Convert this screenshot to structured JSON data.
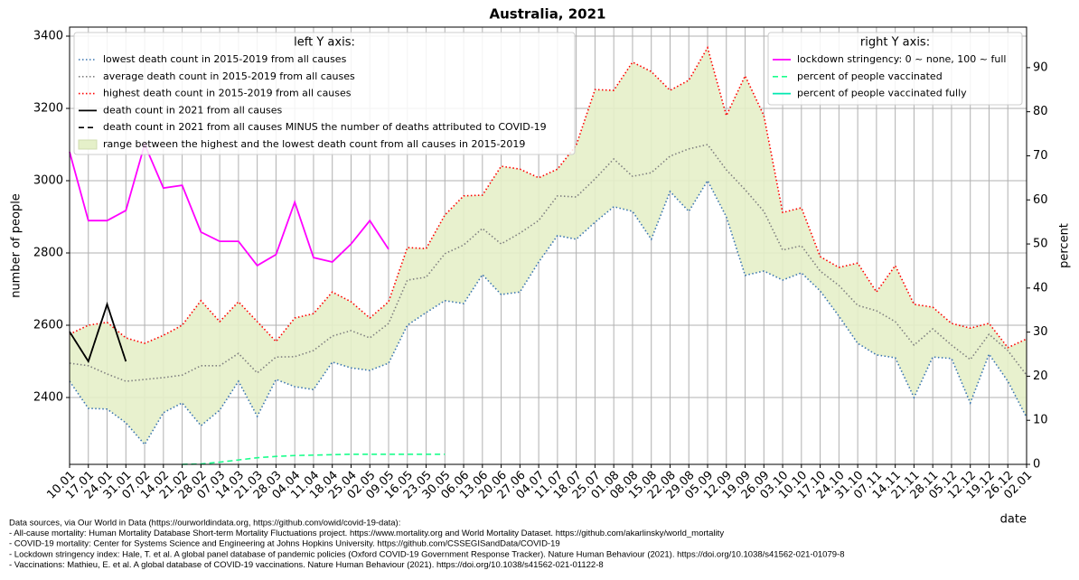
{
  "chart_data": {
    "type": "line",
    "title": "Australia, 2021",
    "ylabel": "number of people",
    "y2label": "percent",
    "xlabel": "date",
    "legend_left_title": "left Y axis:",
    "legend_right_title": "right Y axis:",
    "legend_left": "upper left",
    "legend_right": "upper right",
    "grid": true,
    "categories": [
      "10.01",
      "17.01",
      "24.01",
      "31.01",
      "07.02",
      "14.02",
      "21.02",
      "28.02",
      "07.03",
      "14.03",
      "21.03",
      "28.03",
      "04.04",
      "11.04",
      "18.04",
      "25.04",
      "02.05",
      "09.05",
      "16.05",
      "23.05",
      "30.05",
      "06.06",
      "13.06",
      "20.06",
      "27.06",
      "04.07",
      "11.07",
      "18.07",
      "25.07",
      "01.08",
      "08.08",
      "15.08",
      "22.08",
      "29.08",
      "05.09",
      "12.09",
      "19.09",
      "26.09",
      "03.10",
      "10.10",
      "17.10",
      "24.10",
      "31.10",
      "07.11",
      "14.11",
      "21.11",
      "28.11",
      "05.12",
      "12.12",
      "19.12",
      "26.12",
      "02.01"
    ],
    "ylim": [
      2215,
      3425
    ],
    "yticks": [
      2400,
      2600,
      2800,
      3000,
      3200,
      3400
    ],
    "y2lim": [
      0,
      99.2
    ],
    "y2ticks": [
      0,
      10,
      20,
      30,
      40,
      50,
      60,
      70,
      80,
      90
    ],
    "series": [
      {
        "name": "lowest death count in 2015-2019 from all causes",
        "color": "#3a75b0",
        "style": "dotted",
        "values": [
          2445,
          2370,
          2368,
          2330,
          2270,
          2358,
          2385,
          2322,
          2365,
          2445,
          2348,
          2450,
          2430,
          2422,
          2498,
          2482,
          2475,
          2495,
          2600,
          2635,
          2668,
          2660,
          2740,
          2685,
          2692,
          2775,
          2848,
          2838,
          2885,
          2928,
          2915,
          2838,
          2970,
          2915,
          3000,
          2900,
          2738,
          2750,
          2725,
          2745,
          2695,
          2625,
          2550,
          2518,
          2510,
          2400,
          2512,
          2508,
          2385,
          2520,
          2445,
          2345
        ]
      },
      {
        "name": "average death count in 2015-2019 from all causes",
        "color": "#808080",
        "style": "dotted",
        "values": [
          2495,
          2488,
          2465,
          2445,
          2450,
          2455,
          2462,
          2488,
          2488,
          2522,
          2468,
          2512,
          2513,
          2530,
          2570,
          2585,
          2565,
          2605,
          2725,
          2733,
          2798,
          2822,
          2868,
          2825,
          2855,
          2890,
          2958,
          2955,
          3005,
          3060,
          3012,
          3022,
          3068,
          3088,
          3100,
          3030,
          2975,
          2915,
          2808,
          2820,
          2750,
          2710,
          2655,
          2640,
          2610,
          2545,
          2590,
          2545,
          2505,
          2575,
          2530,
          2462
        ]
      },
      {
        "name": "highest death count in 2015-2019 from all causes",
        "color": "#ff0000",
        "style": "dotted",
        "values": [
          2575,
          2600,
          2608,
          2565,
          2550,
          2572,
          2600,
          2668,
          2610,
          2665,
          2610,
          2555,
          2620,
          2632,
          2692,
          2665,
          2620,
          2665,
          2815,
          2812,
          2905,
          2958,
          2960,
          3040,
          3032,
          3008,
          3032,
          3098,
          3252,
          3250,
          3328,
          3302,
          3250,
          3278,
          3368,
          3180,
          3290,
          3180,
          2912,
          2925,
          2790,
          2760,
          2772,
          2692,
          2765,
          2658,
          2650,
          2605,
          2592,
          2605,
          2538,
          2562
        ]
      },
      {
        "name": "death count in 2021 from all causes",
        "color": "#000000",
        "style": "solid",
        "values": [
          2582,
          2500,
          2658,
          2500,
          null,
          null,
          null,
          null,
          null,
          null,
          null,
          null,
          null,
          null,
          null,
          null,
          null,
          null,
          null,
          null,
          null,
          null,
          null,
          null,
          null,
          null,
          null,
          null,
          null,
          null,
          null,
          null,
          null,
          null,
          null,
          null,
          null,
          null,
          null,
          null,
          null,
          null,
          null,
          null,
          null,
          null,
          null,
          null,
          null,
          null,
          null,
          null
        ]
      },
      {
        "name": "death count in 2021 from all causes MINUS the number of deaths attributed to COVID-19",
        "color": "#000000",
        "style": "dashed",
        "values": [
          2582,
          2500,
          2658,
          2500,
          null,
          null,
          null,
          null,
          null,
          null,
          null,
          null,
          null,
          null,
          null,
          null,
          null,
          null,
          null,
          null,
          null,
          null,
          null,
          null,
          null,
          null,
          null,
          null,
          null,
          null,
          null,
          null,
          null,
          null,
          null,
          null,
          null,
          null,
          null,
          null,
          null,
          null,
          null,
          null,
          null,
          null,
          null,
          null,
          null,
          null,
          null,
          null
        ]
      },
      {
        "name": "lockdown stringency: 0 ~ none, 100 ~ full",
        "color": "#ff00ff",
        "style": "solid",
        "axis": "y2",
        "values": [
          70.9,
          55.3,
          55.3,
          57.6,
          72.6,
          62.7,
          63.3,
          52.7,
          50.6,
          50.6,
          45.1,
          47.6,
          59.5,
          46.9,
          45.9,
          50.0,
          55.3,
          48.8,
          null,
          null,
          null,
          null,
          null,
          null,
          null,
          null,
          null,
          null,
          null,
          null,
          null,
          null,
          null,
          null,
          null,
          null,
          null,
          null,
          null,
          null,
          null,
          null,
          null,
          null,
          null,
          null,
          null,
          null,
          null,
          null,
          null,
          null
        ]
      },
      {
        "name": "percent of people vaccinated",
        "color": "#1aff8c",
        "style": "dashed",
        "axis": "y2",
        "values": [
          null,
          null,
          null,
          null,
          null,
          null,
          0,
          0.1,
          0.5,
          1.0,
          1.5,
          1.8,
          2.0,
          2.1,
          2.2,
          2.3,
          2.3,
          2.3,
          2.3,
          2.3,
          2.3,
          null,
          null,
          null,
          null,
          null,
          null,
          null,
          null,
          null,
          null,
          null,
          null,
          null,
          null,
          null,
          null,
          null,
          null,
          null,
          null,
          null,
          null,
          null,
          null,
          null,
          null,
          null,
          null,
          null,
          null,
          null
        ]
      },
      {
        "name": "percent of people vaccinated fully",
        "color": "#00e8b0",
        "style": "solid",
        "axis": "y2",
        "values": [
          null,
          null,
          null,
          null,
          null,
          null,
          null,
          null,
          null,
          null,
          null,
          null,
          null,
          null,
          null,
          null,
          null,
          null,
          null,
          null,
          null,
          null,
          null,
          null,
          null,
          null,
          null,
          null,
          null,
          null,
          null,
          null,
          null,
          null,
          null,
          null,
          null,
          null,
          null,
          null,
          null,
          null,
          null,
          null,
          null,
          null,
          null,
          null,
          null,
          null,
          null,
          null
        ]
      }
    ],
    "range": {
      "name": "range between the highest and the lowest death count from all causes in 2015-2019",
      "color": "#e5f0c9"
    },
    "notes": [
      "Data sources, via Our World in Data (https://ourworldindata.org, https://github.com/owid/covid-19-data):",
      "- All-cause mortality: Human Mortality Database Short-term Mortality Fluctuations project. https://www.mortality.org and World Mortality Dataset. https://github.com/akarlinsky/world_mortality",
      "- COVID-19 mortality: Center for Systems Science and Engineering at Johns Hopkins University. https://github.com/CSSEGISandData/COVID-19",
      "- Lockdown stringency index: Hale, T. et al. A global panel database of pandemic policies (Oxford COVID-19 Government Response Tracker). Nature Human Behaviour (2021). https://doi.org/10.1038/s41562-021-01079-8",
      "- Vaccinations: Mathieu, E. et al. A global database of COVID-19 vaccinations. Nature Human Behaviour (2021). https://doi.org/10.1038/s41562-021-01122-8"
    ]
  }
}
